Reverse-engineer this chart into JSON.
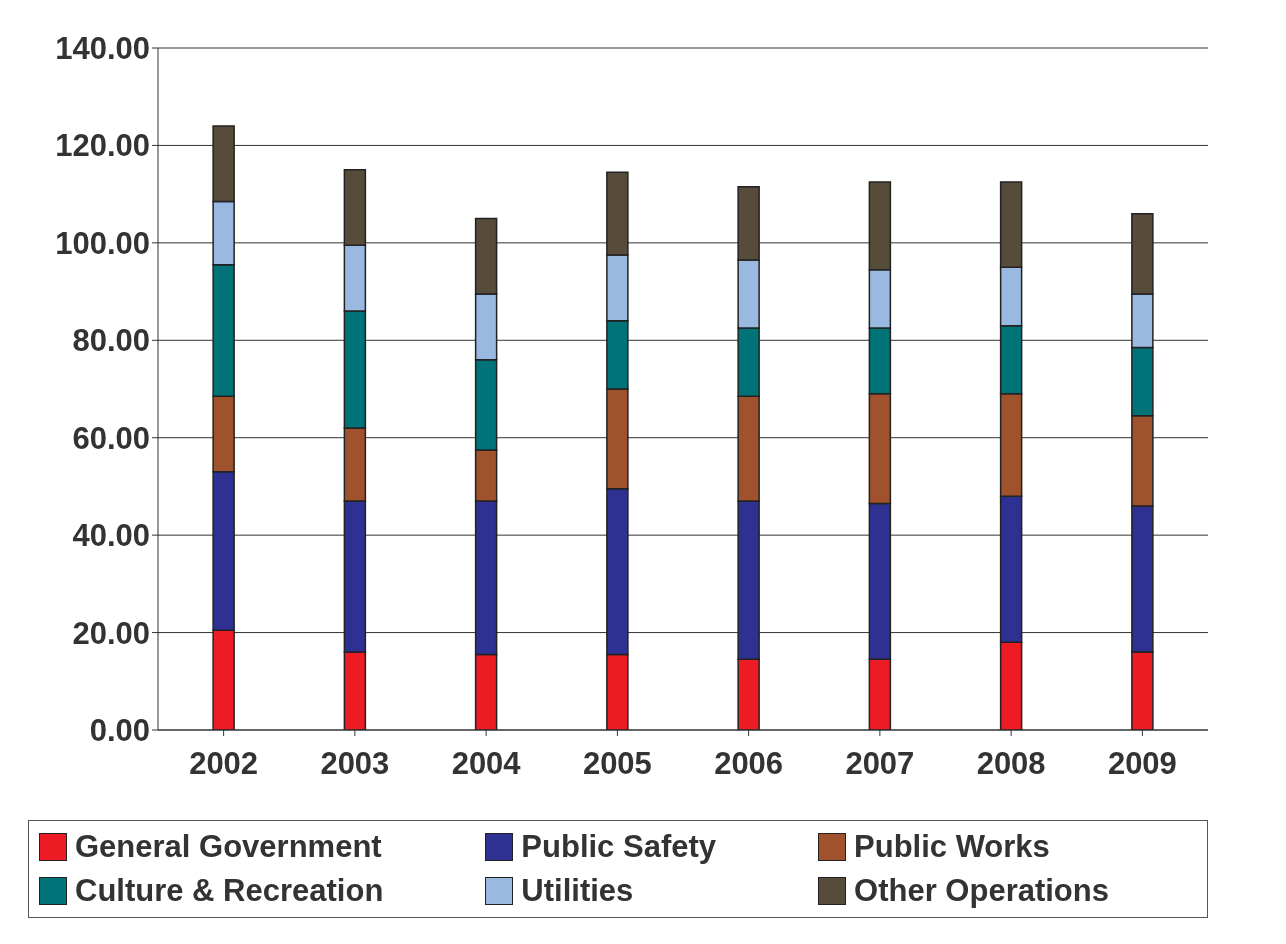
{
  "chart_data": {
    "type": "bar",
    "stacked": true,
    "categories": [
      "2002",
      "2003",
      "2004",
      "2005",
      "2006",
      "2007",
      "2008",
      "2009"
    ],
    "series": [
      {
        "name": "General Government",
        "color": "#ed1c24",
        "values": [
          20.5,
          16,
          15.5,
          15.5,
          14.5,
          14.5,
          18,
          16
        ]
      },
      {
        "name": "Public Safety",
        "color": "#2e3192",
        "values": [
          32.5,
          31,
          31.5,
          34,
          32.5,
          32,
          30,
          30
        ]
      },
      {
        "name": "Public Works",
        "color": "#a0522d",
        "values": [
          15.5,
          15,
          10.5,
          20.5,
          21.5,
          22.5,
          21,
          18.5
        ]
      },
      {
        "name": "Culture & Recreation",
        "color": "#007379",
        "values": [
          27,
          24,
          18.5,
          14,
          14,
          13.5,
          14,
          14
        ]
      },
      {
        "name": "Utilities",
        "color": "#99b9e1",
        "values": [
          13,
          13.5,
          13.5,
          13.5,
          14,
          12,
          12,
          11
        ]
      },
      {
        "name": "Other Operations",
        "color": "#574b3a",
        "values": [
          15.5,
          15.5,
          15.5,
          17,
          15,
          18,
          17.5,
          16.5
        ]
      }
    ],
    "ylim": [
      0,
      140
    ],
    "yticks": [
      {
        "value": 0,
        "label": "0.00"
      },
      {
        "value": 20,
        "label": "20.00"
      },
      {
        "value": 40,
        "label": "40.00"
      },
      {
        "value": 60,
        "label": "60.00"
      },
      {
        "value": 80,
        "label": "80.00"
      },
      {
        "value": 100,
        "label": "100.00"
      },
      {
        "value": 120,
        "label": "120.00"
      },
      {
        "value": 140,
        "label": "140.00"
      }
    ],
    "grid": "y",
    "legend": "bottom"
  }
}
